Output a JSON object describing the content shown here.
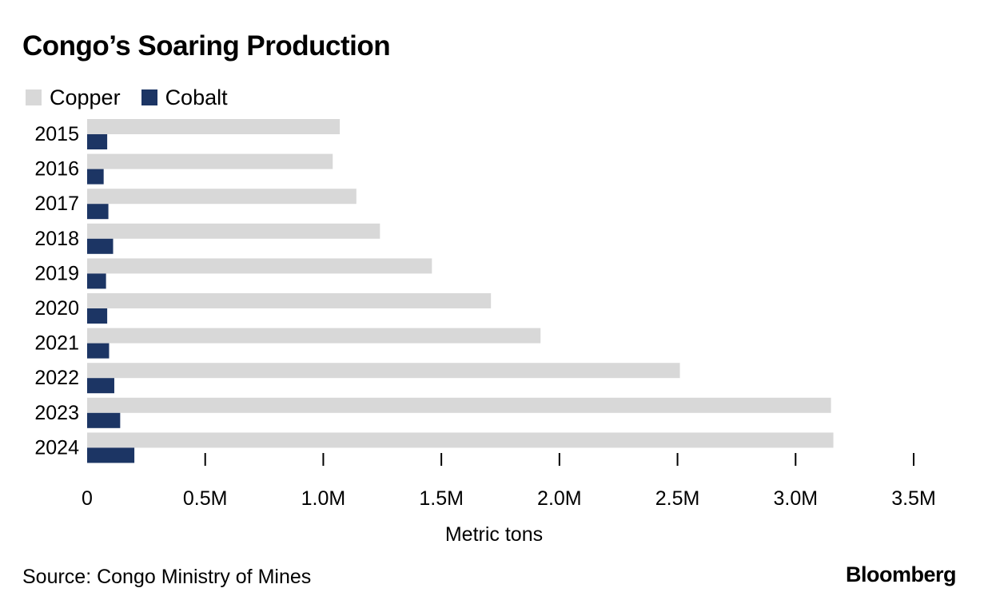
{
  "title": "Congo’s Soaring Production",
  "source": "Source: Congo Ministry of Mines",
  "brand": "Bloomberg",
  "colors": {
    "copper": "#d8d8d8",
    "cobalt": "#1c3564",
    "text": "#000000",
    "tick": "#000000"
  },
  "chart_data": {
    "type": "bar",
    "orientation": "horizontal",
    "categories": [
      "2015",
      "2016",
      "2017",
      "2018",
      "2019",
      "2020",
      "2021",
      "2022",
      "2023",
      "2024"
    ],
    "series": [
      {
        "name": "Copper",
        "values": [
          1070000,
          1040000,
          1140000,
          1240000,
          1460000,
          1710000,
          1920000,
          2510000,
          3150000,
          3160000
        ]
      },
      {
        "name": "Cobalt",
        "values": [
          85000,
          70000,
          90000,
          110000,
          80000,
          85000,
          93000,
          115000,
          140000,
          200000
        ]
      }
    ],
    "xlabel": "Metric tons",
    "ylabel": "",
    "xlim": [
      0,
      3500000
    ],
    "xticks": [
      0,
      500000,
      1000000,
      1500000,
      2000000,
      2500000,
      3000000,
      3500000
    ],
    "xtick_labels": [
      "0",
      "0.5M",
      "1.0M",
      "1.5M",
      "2.0M",
      "2.5M",
      "3.0M",
      "3.5M"
    ],
    "grid": false,
    "legend": "top-left"
  }
}
